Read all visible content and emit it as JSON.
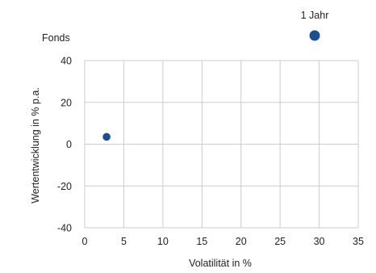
{
  "chart_data": {
    "type": "scatter",
    "xlabel": "Volatilität in %",
    "ylabel": "Wertentwicklung in % p.a.",
    "xlim": [
      0,
      35
    ],
    "ylim": [
      -40,
      40
    ],
    "x_ticks": [
      "0",
      "5",
      "10",
      "15",
      "20",
      "25",
      "30",
      "35"
    ],
    "y_ticks": [
      "40",
      "20",
      "0",
      "-20",
      "-40"
    ],
    "grid": true,
    "point_color": "#1f4e8c",
    "legend": [
      {
        "label": "1 Jahr",
        "marker": "large-dot"
      },
      {
        "label": "Fonds",
        "marker": "none"
      }
    ],
    "series": [
      {
        "name": "1 Jahr",
        "points": [
          {
            "x": 2.8,
            "y": 3.5
          }
        ]
      }
    ]
  }
}
